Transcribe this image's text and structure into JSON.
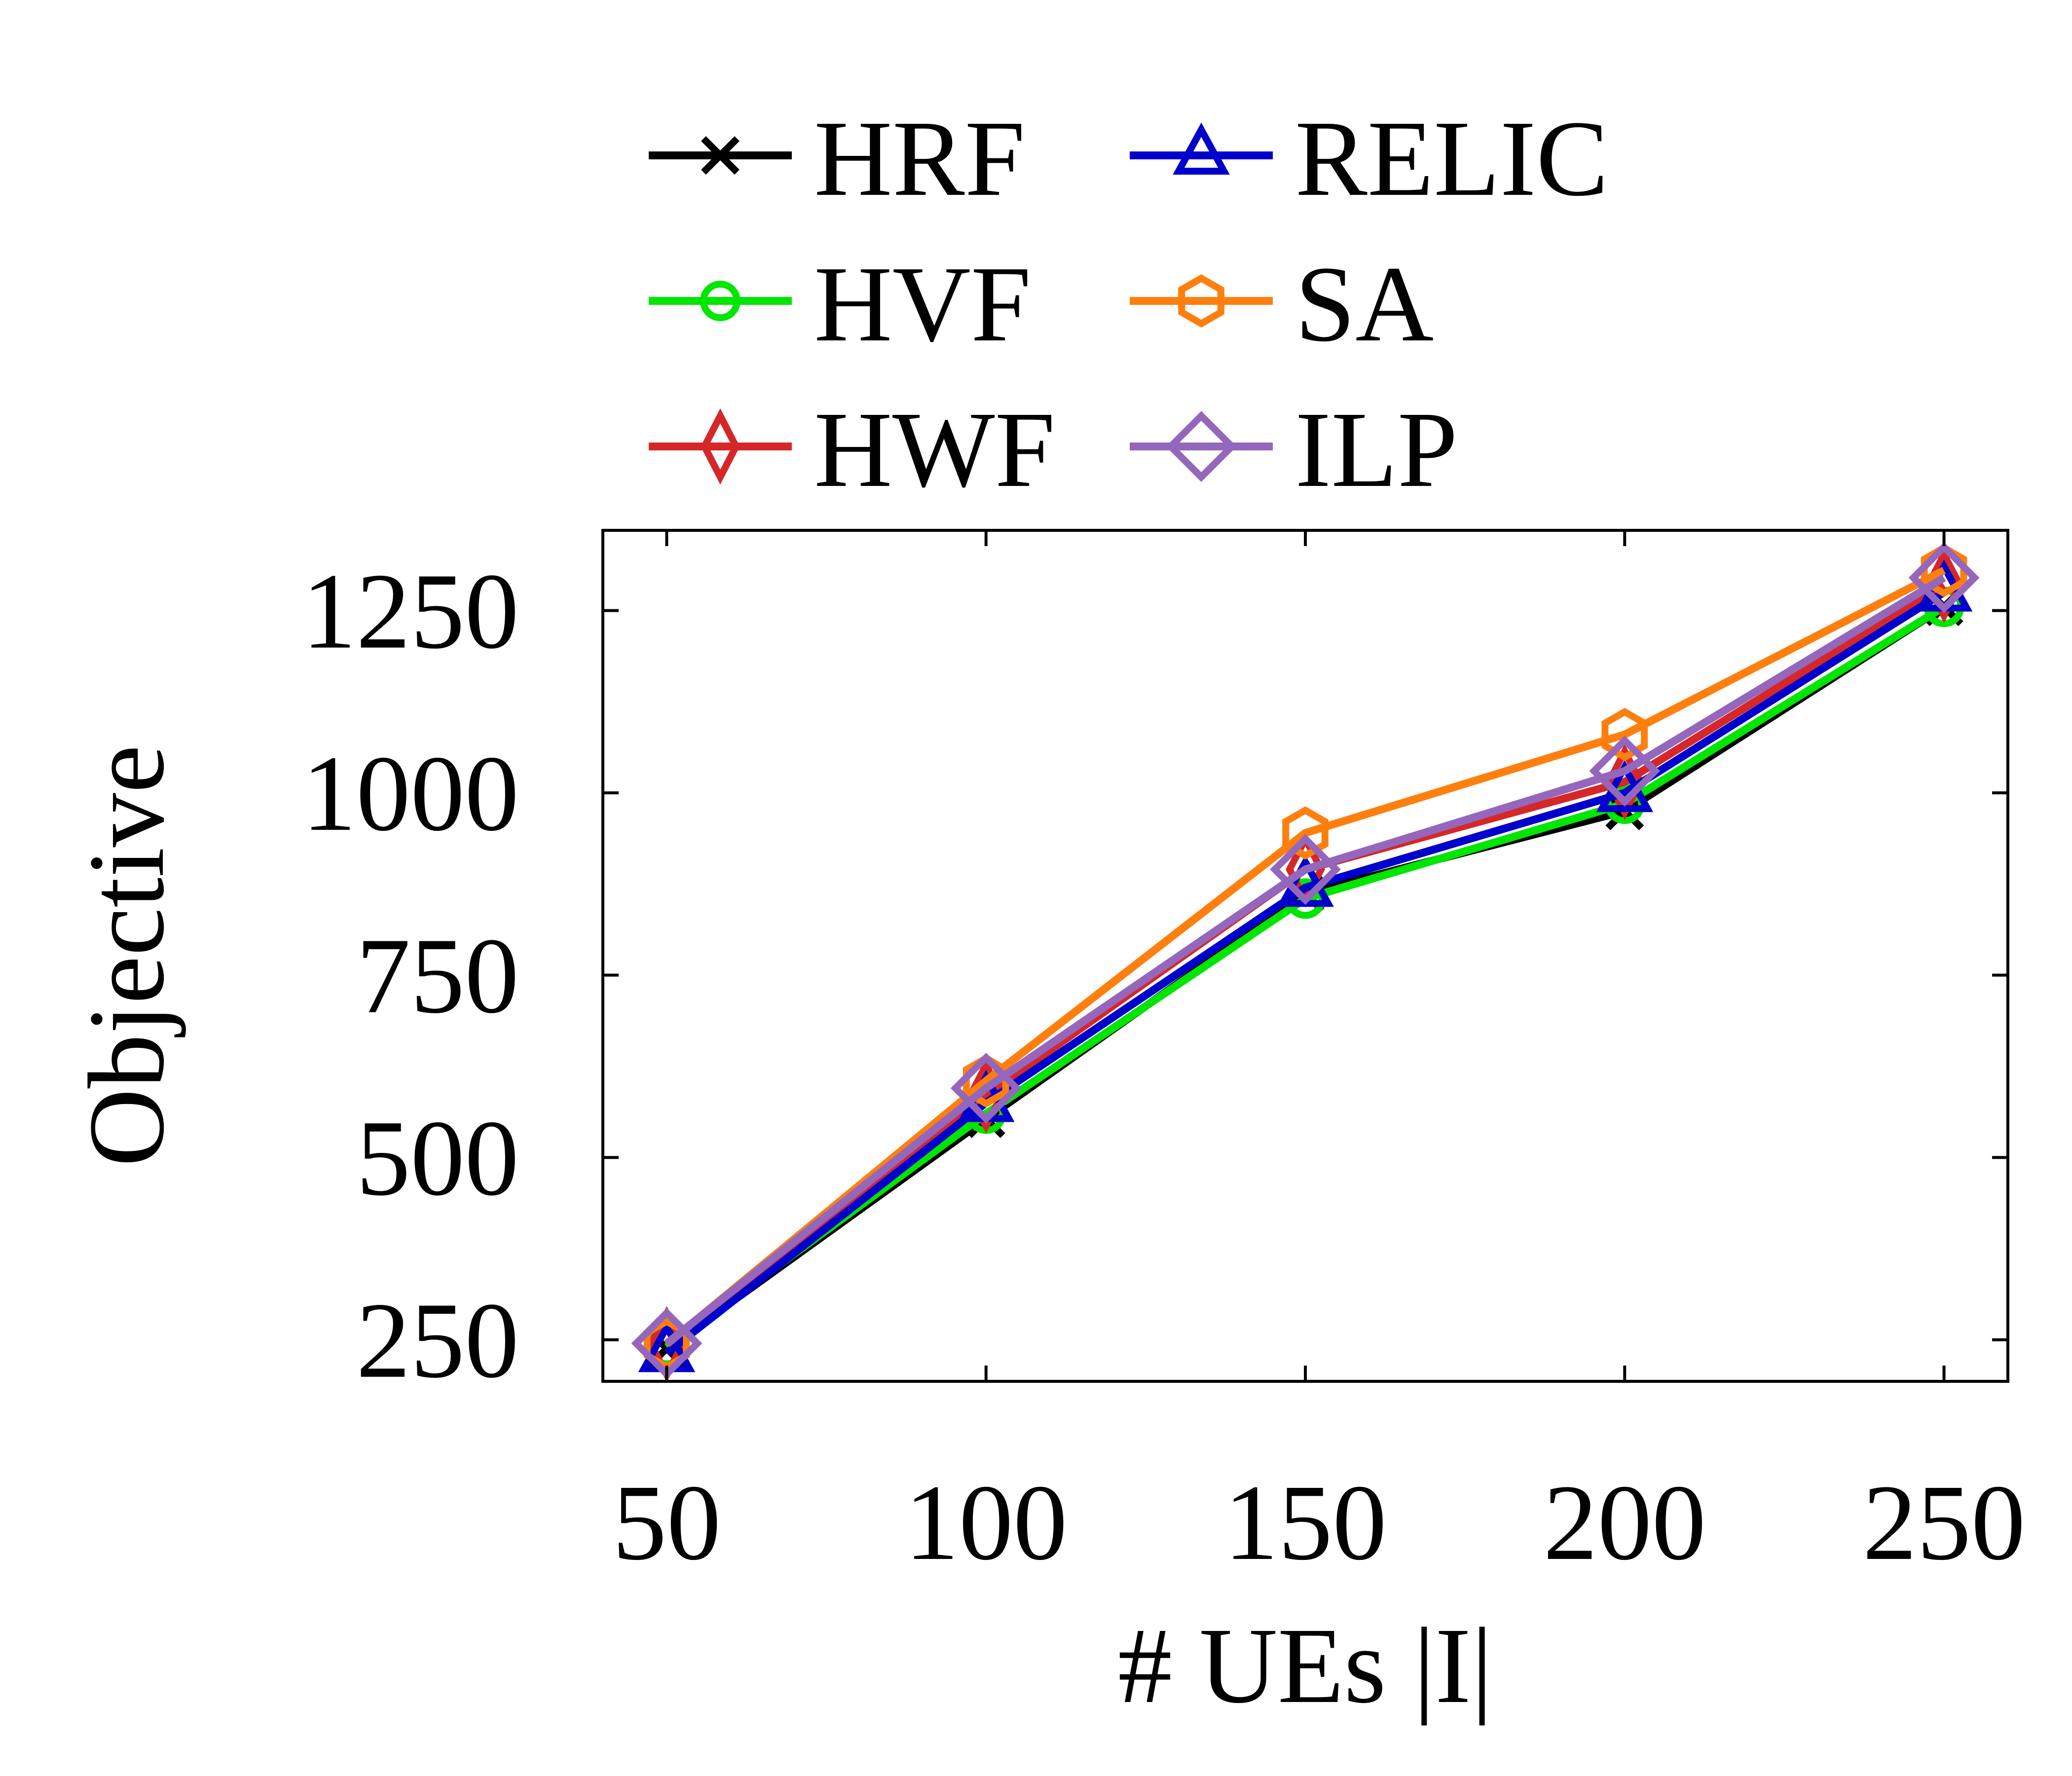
{
  "chart_data": {
    "type": "line",
    "xlabel": "# UEs |I|",
    "ylabel": "Objective",
    "x": [
      50,
      100,
      150,
      200,
      250
    ],
    "x_ticks": [
      "50",
      "100",
      "150",
      "200",
      "250"
    ],
    "y_ticks": [
      "250",
      "500",
      "750",
      "1000",
      "1250"
    ],
    "y_tick_values": [
      250,
      500,
      750,
      1000,
      1250
    ],
    "xlim": [
      40,
      260
    ],
    "ylim": [
      193,
      1360
    ],
    "grid": false,
    "legend_position": "top",
    "series": [
      {
        "name": "HRF",
        "color": "#000000",
        "marker": "x-mark",
        "values": [
          238,
          553,
          862,
          975,
          1255
        ]
      },
      {
        "name": "HVF",
        "color": "#00e600",
        "marker": "circle",
        "values": [
          240,
          560,
          855,
          985,
          1255
        ]
      },
      {
        "name": "HWF",
        "color": "#d62728",
        "marker": "thin-diamond",
        "values": [
          244,
          585,
          895,
          1015,
          1285
        ]
      },
      {
        "name": "RELIC",
        "color": "#0000cc",
        "marker": "triangle",
        "values": [
          232,
          575,
          870,
          1000,
          1275
        ]
      },
      {
        "name": "SA",
        "color": "#ff7f0e",
        "marker": "hexagon",
        "values": [
          244,
          605,
          945,
          1080,
          1305
        ]
      },
      {
        "name": "ILP",
        "color": "#9467bd",
        "marker": "diamond",
        "values": [
          245,
          595,
          895,
          1030,
          1295
        ]
      }
    ]
  }
}
